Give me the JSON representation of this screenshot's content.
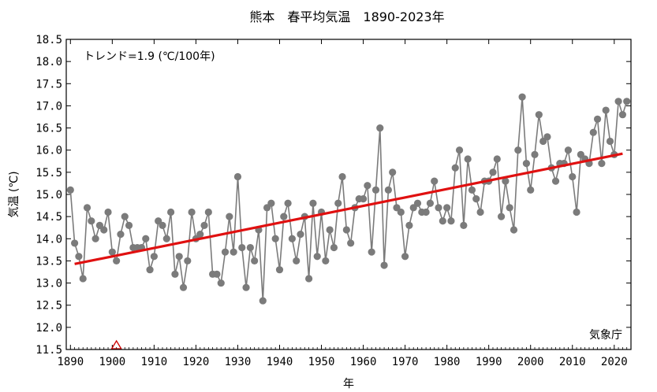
{
  "chart_data": {
    "type": "line",
    "title": "熊本　春平均気温　1890-2023年",
    "xlabel": "年",
    "ylabel": "気温 (℃)",
    "xlim": [
      1889,
      2024
    ],
    "ylim": [
      11.5,
      18.5
    ],
    "xticks": [
      1890,
      1900,
      1910,
      1920,
      1930,
      1940,
      1950,
      1960,
      1970,
      1980,
      1990,
      2000,
      2010,
      2020
    ],
    "yticks": [
      11.5,
      12.0,
      12.5,
      13.0,
      13.5,
      14.0,
      14.5,
      15.0,
      15.5,
      16.0,
      16.5,
      17.0,
      17.5,
      18.0,
      18.5
    ],
    "ytick_labels": [
      "11.5",
      "12.0",
      "12.5",
      "13.0",
      "13.5",
      "14.0",
      "14.5",
      "15.0",
      "15.5",
      "16.0",
      "16.5",
      "17.0",
      "17.5",
      "18.0",
      "18.5"
    ],
    "trend_label": "トレンド=1.9 (℃/100年)",
    "source_label": "気象庁",
    "series": [
      {
        "x": [
          1890,
          1891,
          1892,
          1893,
          1894,
          1895,
          1896,
          1897,
          1898,
          1899,
          1900,
          1901,
          1902,
          1903,
          1904,
          1905,
          1906,
          1907,
          1908,
          1909,
          1910,
          1911,
          1912,
          1913,
          1914,
          1915,
          1916,
          1917,
          1918,
          1919,
          1920,
          1921,
          1922,
          1923,
          1924,
          1925,
          1926,
          1927,
          1928,
          1929,
          1930,
          1931,
          1932,
          1933,
          1934,
          1935,
          1936,
          1937,
          1938,
          1939,
          1940,
          1941,
          1942,
          1943,
          1944,
          1945,
          1946,
          1947,
          1948,
          1949,
          1950,
          1951,
          1952,
          1953,
          1954,
          1955,
          1956,
          1957,
          1958,
          1959,
          1960,
          1961,
          1962,
          1963,
          1964,
          1965,
          1966,
          1967,
          1968,
          1969,
          1970,
          1971,
          1972,
          1973,
          1974,
          1975,
          1976,
          1977,
          1978,
          1979,
          1980,
          1981,
          1982,
          1983,
          1984,
          1985,
          1986,
          1987,
          1988,
          1989,
          1990,
          1991,
          1992,
          1993,
          1994,
          1995,
          1996,
          1997,
          1998,
          1999,
          2000,
          2001,
          2002,
          2003,
          2004,
          2005,
          2006,
          2007,
          2008,
          2009,
          2010,
          2011,
          2012,
          2013,
          2014,
          2015,
          2016,
          2017,
          2018,
          2019,
          2020,
          2021,
          2022,
          2023
        ],
        "values": [
          15.1,
          13.9,
          13.6,
          13.1,
          14.7,
          14.4,
          14.0,
          14.3,
          14.2,
          14.6,
          13.7,
          13.5,
          14.1,
          14.5,
          14.3,
          13.8,
          13.8,
          13.8,
          14.0,
          13.3,
          13.6,
          14.4,
          14.3,
          14.0,
          14.6,
          13.2,
          13.6,
          12.9,
          13.5,
          14.6,
          14.0,
          14.1,
          14.3,
          14.6,
          13.2,
          13.2,
          13.0,
          13.7,
          14.5,
          13.7,
          15.4,
          13.8,
          12.9,
          13.8,
          13.5,
          14.2,
          12.6,
          14.7,
          14.8,
          14.0,
          13.3,
          14.5,
          14.8,
          14.0,
          13.5,
          14.1,
          14.5,
          13.1,
          14.8,
          13.6,
          14.6,
          13.5,
          14.2,
          13.8,
          14.8,
          15.4,
          14.2,
          13.9,
          14.7,
          14.9,
          14.9,
          15.2,
          13.7,
          15.1,
          16.5,
          13.4,
          15.1,
          15.5,
          14.7,
          14.6,
          13.6,
          14.3,
          14.7,
          14.8,
          14.6,
          14.6,
          14.8,
          15.3,
          14.7,
          14.4,
          14.7,
          14.4,
          15.6,
          16.0,
          14.3,
          15.8,
          15.1,
          14.9,
          14.6,
          15.3,
          15.3,
          15.5,
          15.8,
          14.5,
          15.3,
          14.7,
          14.2,
          16.0,
          17.2,
          15.7,
          15.1,
          15.9,
          16.8,
          16.2,
          16.3,
          15.6,
          15.3,
          15.7,
          15.7,
          16.0,
          15.4,
          14.6,
          15.9,
          15.8,
          15.7,
          16.4,
          16.7,
          15.7,
          16.9,
          16.2,
          15.9,
          17.1,
          16.8,
          17.1
        ]
      }
    ],
    "trend": {
      "x": [
        1891,
        2022
      ],
      "y": [
        13.43,
        15.92
      ]
    },
    "marker": {
      "x": 1901,
      "y": 11.5
    },
    "colors": {
      "series": "#7b7b7b",
      "trend": "#e01010",
      "marker": "#cc0000",
      "axes": "#000000"
    }
  }
}
